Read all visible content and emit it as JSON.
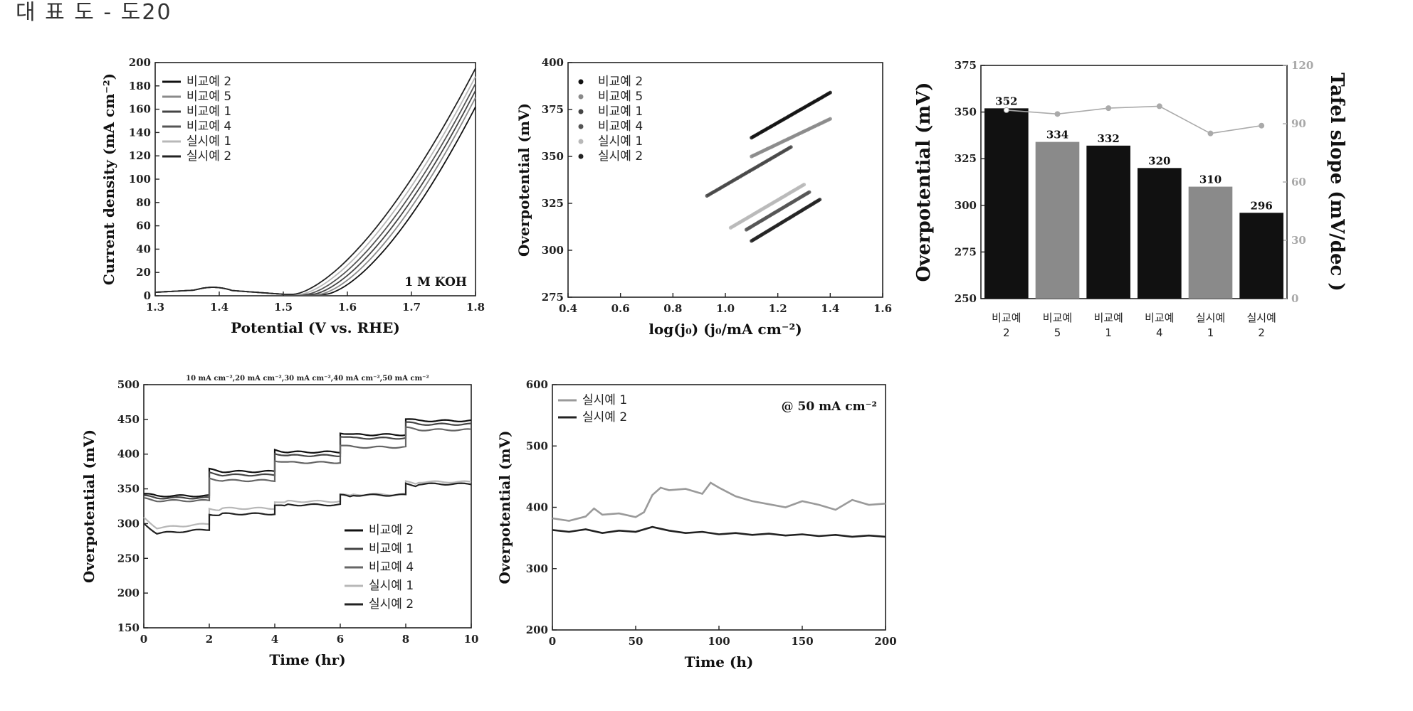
{
  "header": "대 표 도 - 도20",
  "colors": {
    "black": "#111111",
    "darkgray": "#444444",
    "gray": "#8a8a8a",
    "lightgray": "#b8b8b8",
    "axis": "#222222",
    "tafel": "#aaaaaa"
  },
  "chart_data": [
    {
      "id": "a",
      "type": "line",
      "xlabel": "Potential (V vs. RHE)",
      "ylabel": "Current density (mA cm⁻²)",
      "xlim": [
        1.3,
        1.8
      ],
      "ylim": [
        0,
        200
      ],
      "xticks": [
        1.3,
        1.4,
        1.5,
        1.6,
        1.7,
        1.8
      ],
      "yticks": [
        0,
        20,
        40,
        60,
        80,
        100,
        120,
        140,
        160,
        180,
        200
      ],
      "annotation": "1 M KOH",
      "legend_position": "top-left",
      "series": [
        {
          "name": "비교예 2",
          "color": "#111111",
          "onset": 1.565,
          "end": 162
        },
        {
          "name": "비교예 5",
          "color": "#8a8a8a",
          "onset": 1.555,
          "end": 170
        },
        {
          "name": "비교예 1",
          "color": "#444444",
          "onset": 1.545,
          "end": 176
        },
        {
          "name": "비교예 4",
          "color": "#555555",
          "onset": 1.535,
          "end": 182
        },
        {
          "name": "실시예 1",
          "color": "#b8b8b8",
          "onset": 1.525,
          "end": 188
        },
        {
          "name": "실시예 2",
          "color": "#222222",
          "onset": 1.515,
          "end": 195
        }
      ]
    },
    {
      "id": "b",
      "type": "scatter",
      "xlabel": "log(j₀) (j₀/mA cm⁻²)",
      "ylabel": "Overpotential (mV)",
      "xlim": [
        0.4,
        1.6
      ],
      "ylim": [
        275,
        400
      ],
      "xticks": [
        0.4,
        0.6,
        0.8,
        1.0,
        1.2,
        1.4,
        1.6
      ],
      "yticks": [
        275,
        300,
        325,
        350,
        375,
        400
      ],
      "legend_position": "top-left",
      "series": [
        {
          "name": "비교예 2",
          "color": "#111111",
          "x0": 1.1,
          "y0": 360,
          "x1": 1.4,
          "y1": 384
        },
        {
          "name": "비교예 5",
          "color": "#8a8a8a",
          "x0": 1.1,
          "y0": 350,
          "x1": 1.4,
          "y1": 370
        },
        {
          "name": "비교예 1",
          "color": "#444444",
          "x0": 0.93,
          "y0": 329,
          "x1": 1.25,
          "y1": 355
        },
        {
          "name": "비교예 4",
          "color": "#555555",
          "x0": 1.08,
          "y0": 311,
          "x1": 1.32,
          "y1": 331
        },
        {
          "name": "실시예 1",
          "color": "#b8b8b8",
          "x0": 1.02,
          "y0": 312,
          "x1": 1.3,
          "y1": 335
        },
        {
          "name": "실시예 2",
          "color": "#222222",
          "x0": 1.1,
          "y0": 305,
          "x1": 1.36,
          "y1": 327
        }
      ]
    },
    {
      "id": "c",
      "type": "bar",
      "ylabel": "Overpotential (mV)",
      "y2label": "Tafel slope (mV/dec )",
      "ylim": [
        250,
        375
      ],
      "yticks": [
        250,
        275,
        300,
        325,
        350,
        375
      ],
      "y2lim": [
        0,
        120
      ],
      "y2ticks": [
        0,
        30,
        60,
        90,
        120
      ],
      "categories": [
        {
          "line1": "비교예",
          "line2": "2"
        },
        {
          "line1": "비교예",
          "line2": "5"
        },
        {
          "line1": "비교예",
          "line2": "1"
        },
        {
          "line1": "비교예",
          "line2": "4"
        },
        {
          "line1": "실시예",
          "line2": "1"
        },
        {
          "line1": "실시예",
          "line2": "2"
        }
      ],
      "values": [
        352,
        334,
        332,
        320,
        310,
        296
      ],
      "value_labels": [
        "352",
        "334",
        "332",
        "320",
        "310",
        "296"
      ],
      "bar_colors": [
        "#111111",
        "#8a8a8a",
        "#111111",
        "#111111",
        "#8a8a8a",
        "#111111"
      ],
      "tafel_values": [
        97,
        95,
        98,
        99,
        85,
        89
      ]
    },
    {
      "id": "d",
      "type": "line",
      "xlabel": "Time (hr)",
      "ylabel": "Overpotential (mV)",
      "title": "10 mA cm⁻²,20 mA cm⁻²,30 mA cm⁻²,40 mA cm⁻²,50 mA cm⁻²",
      "xlim": [
        0,
        10
      ],
      "ylim": [
        150,
        500
      ],
      "xticks": [
        0,
        2,
        4,
        6,
        8,
        10
      ],
      "yticks": [
        150,
        200,
        250,
        300,
        350,
        400,
        450,
        500
      ],
      "legend_position": "bottom-right",
      "series": [
        {
          "name": "비교예 2",
          "color": "#111111",
          "levels": [
            340,
            375,
            403,
            428,
            448
          ]
        },
        {
          "name": "비교예 1",
          "color": "#444444",
          "levels": [
            337,
            370,
            398,
            423,
            443
          ]
        },
        {
          "name": "비교예 4",
          "color": "#666666",
          "levels": [
            333,
            362,
            388,
            410,
            435
          ]
        },
        {
          "name": "실시예 1",
          "color": "#b8b8b8",
          "levels": [
            308,
            322,
            332,
            342,
            360
          ]
        },
        {
          "name": "실시예 2",
          "color": "#222222",
          "levels": [
            300,
            314,
            327,
            341,
            357
          ]
        }
      ]
    },
    {
      "id": "e",
      "type": "line",
      "xlabel": "Time (h)",
      "ylabel": "Overpotential (mV)",
      "annotation": "@ 50 mA cm⁻²",
      "xlim": [
        0,
        200
      ],
      "ylim": [
        200,
        600
      ],
      "xticks": [
        0,
        50,
        100,
        150,
        200
      ],
      "yticks": [
        200,
        300,
        400,
        500,
        600
      ],
      "legend_position": "top-left",
      "series": [
        {
          "name": "실시예 1",
          "color": "#9a9a9a",
          "x": [
            0,
            10,
            20,
            25,
            30,
            40,
            50,
            55,
            60,
            65,
            70,
            80,
            90,
            95,
            100,
            110,
            120,
            130,
            140,
            150,
            160,
            170,
            180,
            190,
            200
          ],
          "y": [
            382,
            378,
            385,
            398,
            388,
            390,
            384,
            392,
            420,
            432,
            428,
            430,
            422,
            440,
            432,
            418,
            410,
            405,
            400,
            410,
            404,
            396,
            412,
            404,
            406
          ]
        },
        {
          "name": "실시예 2",
          "color": "#222222",
          "x": [
            0,
            10,
            20,
            30,
            40,
            50,
            60,
            70,
            80,
            90,
            100,
            110,
            120,
            130,
            140,
            150,
            160,
            170,
            180,
            190,
            200
          ],
          "y": [
            363,
            360,
            364,
            358,
            362,
            360,
            368,
            362,
            358,
            360,
            356,
            358,
            355,
            357,
            354,
            356,
            353,
            355,
            352,
            354,
            352
          ]
        }
      ]
    }
  ]
}
